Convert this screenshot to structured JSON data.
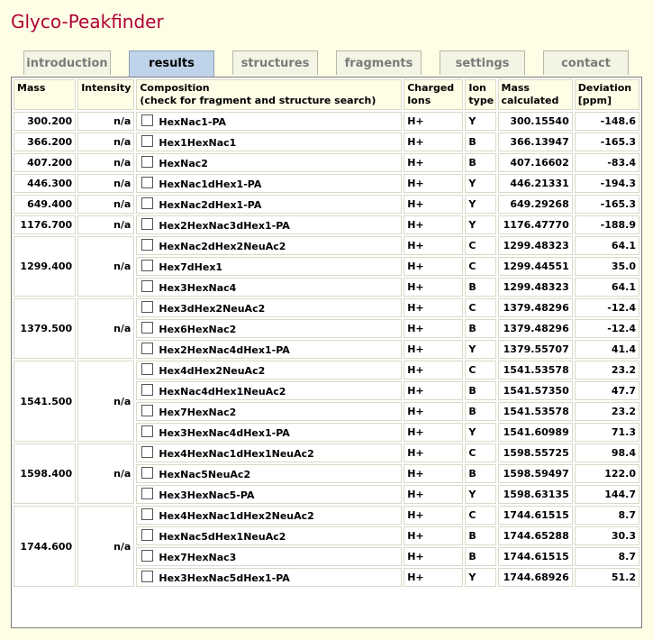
{
  "app_title": "Glyco-Peakfinder",
  "tabs": [
    {
      "label": "introduction"
    },
    {
      "label": "results"
    },
    {
      "label": "structures"
    },
    {
      "label": "fragments"
    },
    {
      "label": "settings"
    },
    {
      "label": "contact"
    }
  ],
  "active_tab": "results",
  "table": {
    "headers": {
      "mass": "Mass",
      "intensity": "Intensity",
      "composition_line1": "Composition",
      "composition_line2": "(check for fragment and structure search)",
      "charged_line1": "Charged",
      "charged_line2": "Ions",
      "iontype_line1": "Ion",
      "iontype_line2": "type",
      "masscalc_line1": "Mass",
      "masscalc_line2": "calculated",
      "deviation_line1": "Deviation",
      "deviation_line2": "[ppm]"
    },
    "groups": [
      {
        "mass": "300.200",
        "intensity": "n/a",
        "rows": [
          {
            "composition": "HexNac1-PA",
            "charged": "H+",
            "ion": "Y",
            "calc": "300.15540",
            "dev": "-148.6"
          }
        ]
      },
      {
        "mass": "366.200",
        "intensity": "n/a",
        "rows": [
          {
            "composition": "Hex1HexNac1",
            "charged": "H+",
            "ion": "B",
            "calc": "366.13947",
            "dev": "-165.3"
          }
        ]
      },
      {
        "mass": "407.200",
        "intensity": "n/a",
        "rows": [
          {
            "composition": "HexNac2",
            "charged": "H+",
            "ion": "B",
            "calc": "407.16602",
            "dev": "-83.4"
          }
        ]
      },
      {
        "mass": "446.300",
        "intensity": "n/a",
        "rows": [
          {
            "composition": "HexNac1dHex1-PA",
            "charged": "H+",
            "ion": "Y",
            "calc": "446.21331",
            "dev": "-194.3"
          }
        ]
      },
      {
        "mass": "649.400",
        "intensity": "n/a",
        "rows": [
          {
            "composition": "HexNac2dHex1-PA",
            "charged": "H+",
            "ion": "Y",
            "calc": "649.29268",
            "dev": "-165.3"
          }
        ]
      },
      {
        "mass": "1176.700",
        "intensity": "n/a",
        "rows": [
          {
            "composition": "Hex2HexNac3dHex1-PA",
            "charged": "H+",
            "ion": "Y",
            "calc": "1176.47770",
            "dev": "-188.9"
          }
        ]
      },
      {
        "mass": "1299.400",
        "intensity": "n/a",
        "rows": [
          {
            "composition": "HexNac2dHex2NeuAc2",
            "charged": "H+",
            "ion": "C",
            "calc": "1299.48323",
            "dev": "64.1"
          },
          {
            "composition": "Hex7dHex1",
            "charged": "H+",
            "ion": "C",
            "calc": "1299.44551",
            "dev": "35.0"
          },
          {
            "composition": "Hex3HexNac4",
            "charged": "H+",
            "ion": "B",
            "calc": "1299.48323",
            "dev": "64.1"
          }
        ]
      },
      {
        "mass": "1379.500",
        "intensity": "n/a",
        "rows": [
          {
            "composition": "Hex3dHex2NeuAc2",
            "charged": "H+",
            "ion": "C",
            "calc": "1379.48296",
            "dev": "-12.4"
          },
          {
            "composition": "Hex6HexNac2",
            "charged": "H+",
            "ion": "B",
            "calc": "1379.48296",
            "dev": "-12.4"
          },
          {
            "composition": "Hex2HexNac4dHex1-PA",
            "charged": "H+",
            "ion": "Y",
            "calc": "1379.55707",
            "dev": "41.4"
          }
        ]
      },
      {
        "mass": "1541.500",
        "intensity": "n/a",
        "rows": [
          {
            "composition": "Hex4dHex2NeuAc2",
            "charged": "H+",
            "ion": "C",
            "calc": "1541.53578",
            "dev": "23.2"
          },
          {
            "composition": "HexNac4dHex1NeuAc2",
            "charged": "H+",
            "ion": "B",
            "calc": "1541.57350",
            "dev": "47.7"
          },
          {
            "composition": "Hex7HexNac2",
            "charged": "H+",
            "ion": "B",
            "calc": "1541.53578",
            "dev": "23.2"
          },
          {
            "composition": "Hex3HexNac4dHex1-PA",
            "charged": "H+",
            "ion": "Y",
            "calc": "1541.60989",
            "dev": "71.3"
          }
        ]
      },
      {
        "mass": "1598.400",
        "intensity": "n/a",
        "rows": [
          {
            "composition": "Hex4HexNac1dHex1NeuAc2",
            "charged": "H+",
            "ion": "C",
            "calc": "1598.55725",
            "dev": "98.4"
          },
          {
            "composition": "HexNac5NeuAc2",
            "charged": "H+",
            "ion": "B",
            "calc": "1598.59497",
            "dev": "122.0"
          },
          {
            "composition": "Hex3HexNac5-PA",
            "charged": "H+",
            "ion": "Y",
            "calc": "1598.63135",
            "dev": "144.7"
          }
        ]
      },
      {
        "mass": "1744.600",
        "intensity": "n/a",
        "rows": [
          {
            "composition": "Hex4HexNac1dHex2NeuAc2",
            "charged": "H+",
            "ion": "C",
            "calc": "1744.61515",
            "dev": "8.7"
          },
          {
            "composition": "HexNac5dHex1NeuAc2",
            "charged": "H+",
            "ion": "B",
            "calc": "1744.65288",
            "dev": "30.3"
          },
          {
            "composition": "Hex7HexNac3",
            "charged": "H+",
            "ion": "B",
            "calc": "1744.61515",
            "dev": "8.7"
          },
          {
            "composition": "Hex3HexNac5dHex1-PA",
            "charged": "H+",
            "ion": "Y",
            "calc": "1744.68926",
            "dev": "51.2"
          }
        ]
      }
    ]
  },
  "colors": {
    "title": "#b00035",
    "page_background": "#fefde6",
    "active_tab": "#bfd3ea"
  }
}
